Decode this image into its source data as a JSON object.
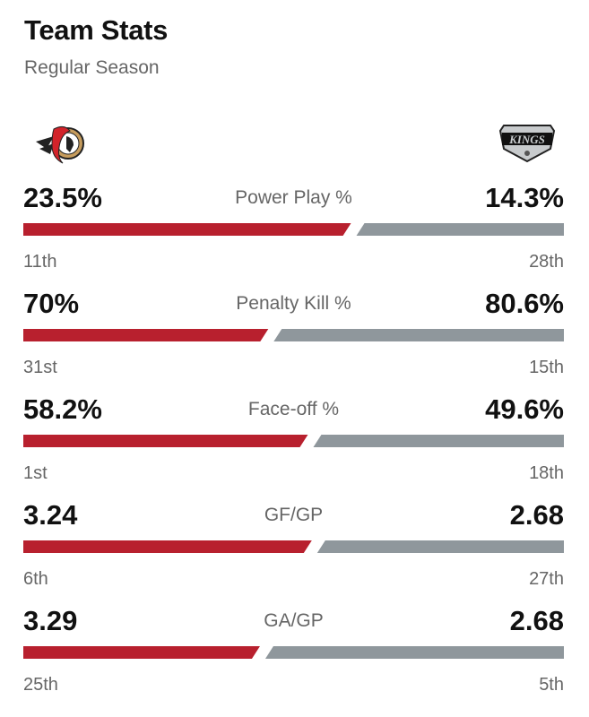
{
  "header": {
    "title": "Team Stats",
    "subtitle": "Regular Season"
  },
  "teams": {
    "left": {
      "logo": "ottawa-senators-logo",
      "color": "#b8202e"
    },
    "right": {
      "logo": "los-angeles-kings-logo",
      "logo_text": "KINGS",
      "color": "#8f979c"
    }
  },
  "stats": [
    {
      "label": "Power Play %",
      "left_value": "23.5%",
      "right_value": "14.3%",
      "left_num": 23.5,
      "right_num": 14.3,
      "left_rank": "11th",
      "right_rank": "28th",
      "lower_is_better": false
    },
    {
      "label": "Penalty Kill %",
      "left_value": "70%",
      "right_value": "80.6%",
      "left_num": 70,
      "right_num": 80.6,
      "left_rank": "31st",
      "right_rank": "15th",
      "lower_is_better": false
    },
    {
      "label": "Face-off %",
      "left_value": "58.2%",
      "right_value": "49.6%",
      "left_num": 58.2,
      "right_num": 49.6,
      "left_rank": "1st",
      "right_rank": "18th",
      "lower_is_better": false
    },
    {
      "label": "GF/GP",
      "left_value": "3.24",
      "right_value": "2.68",
      "left_num": 3.24,
      "right_num": 2.68,
      "left_rank": "6th",
      "right_rank": "27th",
      "lower_is_better": false
    },
    {
      "label": "GA/GP",
      "left_value": "3.29",
      "right_value": "2.68",
      "left_num": 3.29,
      "right_num": 2.68,
      "left_rank": "25th",
      "right_rank": "5th",
      "lower_is_better": true
    }
  ]
}
